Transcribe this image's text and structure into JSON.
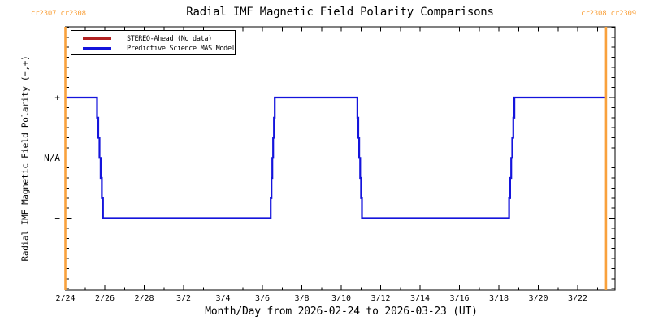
{
  "title": "Radial IMF Magnetic Field Polarity Comparisons",
  "corner_labels": {
    "top_left": "cr2307 cr2308",
    "top_right": "cr2308 cr2309"
  },
  "colors": {
    "accent_orange": "#F9A13C",
    "stereo_red": "#B22222",
    "mas_blue": "#1414DC",
    "axis_black": "#000000",
    "background": "#FFFFFF"
  },
  "legend": {
    "items": [
      {
        "label": "STEREO-Ahead (No data)",
        "color": "#B22222"
      },
      {
        "label": "Predictive Science MAS Model",
        "color": "#1414DC"
      }
    ]
  },
  "chart_data": {
    "type": "line",
    "title": "Radial IMF Magnetic Field Polarity Comparisons",
    "xlabel": "Month/Day from 2026-02-24 to 2026-03-23 (UT)",
    "ylabel": "Radial IMF Magnetic Field Polarity (−,+)",
    "x_start_date": "2026-02-24",
    "x_range_days": [
      0,
      27.9
    ],
    "y_range": [
      -2.2,
      2.2
    ],
    "grid": false,
    "legend_position": "top-left-inside",
    "x_major_ticks": [
      {
        "day": 0,
        "label": "2/24"
      },
      {
        "day": 2,
        "label": "2/26"
      },
      {
        "day": 4,
        "label": "2/28"
      },
      {
        "day": 6,
        "label": "3/2"
      },
      {
        "day": 8,
        "label": "3/4"
      },
      {
        "day": 10,
        "label": "3/6"
      },
      {
        "day": 12,
        "label": "3/8"
      },
      {
        "day": 14,
        "label": "3/10"
      },
      {
        "day": 16,
        "label": "3/12"
      },
      {
        "day": 18,
        "label": "3/14"
      },
      {
        "day": 20,
        "label": "3/16"
      },
      {
        "day": 22,
        "label": "3/18"
      },
      {
        "day": 24,
        "label": "3/20"
      },
      {
        "day": 26,
        "label": "3/22"
      }
    ],
    "x_minor_tick_interval_days": 1,
    "y_ticks": [
      {
        "value": 1,
        "label": "+"
      },
      {
        "value": 0,
        "label": "N/A"
      },
      {
        "value": -1,
        "label": "−"
      }
    ],
    "series": [
      {
        "name": "STEREO-Ahead (No data)",
        "color": "#B22222",
        "points": []
      },
      {
        "name": "Predictive Science MAS Model",
        "color": "#1414DC",
        "points": [
          [
            0.06,
            1
          ],
          [
            1.61,
            1
          ],
          [
            1.97,
            -1
          ],
          [
            10.42,
            -1
          ],
          [
            10.67,
            1
          ],
          [
            14.82,
            1
          ],
          [
            15.1,
            -1
          ],
          [
            22.52,
            -1
          ],
          [
            22.84,
            1
          ],
          [
            27.44,
            1
          ]
        ]
      }
    ],
    "carrington_boundaries": [
      {
        "day": 0,
        "labels": "cr2307 cr2308"
      },
      {
        "day": 27.44,
        "labels": "cr2308 cr2309"
      }
    ],
    "boundary_color": "#F9A13C"
  }
}
